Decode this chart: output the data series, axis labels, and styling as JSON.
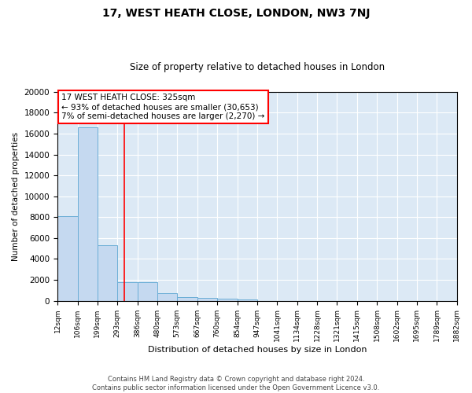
{
  "title": "17, WEST HEATH CLOSE, LONDON, NW3 7NJ",
  "subtitle": "Size of property relative to detached houses in London",
  "xlabel": "Distribution of detached houses by size in London",
  "ylabel": "Number of detached properties",
  "footnote1": "Contains HM Land Registry data © Crown copyright and database right 2024.",
  "footnote2": "Contains public sector information licensed under the Open Government Licence v3.0.",
  "annotation_line1": "17 WEST HEATH CLOSE: 325sqm",
  "annotation_line2": "← 93% of detached houses are smaller (30,653)",
  "annotation_line3": "7% of semi-detached houses are larger (2,270) →",
  "bar_edges": [
    12,
    106,
    199,
    293,
    386,
    480,
    573,
    667,
    760,
    854,
    947,
    1041,
    1134,
    1228,
    1321,
    1415,
    1508,
    1602,
    1695,
    1789,
    1882
  ],
  "bar_heights": [
    8100,
    16600,
    5300,
    1800,
    1750,
    700,
    320,
    250,
    200,
    150,
    0,
    0,
    0,
    0,
    0,
    0,
    0,
    0,
    0,
    0
  ],
  "bar_color": "#c5d9f0",
  "bar_edge_color": "#6baed6",
  "background_color": "#dce9f5",
  "red_line_x": 325,
  "ylim": [
    0,
    20000
  ],
  "yticks": [
    0,
    2000,
    4000,
    6000,
    8000,
    10000,
    12000,
    14000,
    16000,
    18000,
    20000
  ],
  "tick_labels": [
    "12sqm",
    "106sqm",
    "199sqm",
    "293sqm",
    "386sqm",
    "480sqm",
    "573sqm",
    "667sqm",
    "760sqm",
    "854sqm",
    "947sqm",
    "1041sqm",
    "1134sqm",
    "1228sqm",
    "1321sqm",
    "1415sqm",
    "1508sqm",
    "1602sqm",
    "1695sqm",
    "1789sqm",
    "1882sqm"
  ],
  "figsize": [
    6.0,
    5.0
  ],
  "dpi": 100
}
